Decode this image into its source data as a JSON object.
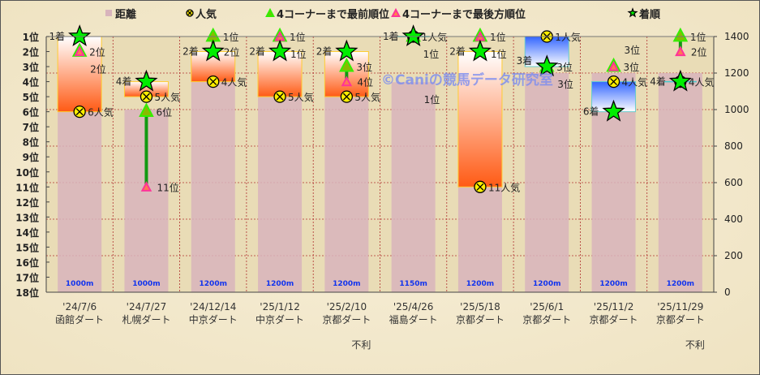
{
  "chart_data": {
    "type": "combo",
    "legend": {
      "position": "top",
      "items": [
        "距離",
        "人気",
        "4コーナーまで最前順位",
        "4コーナーまで最後方順位",
        "着順"
      ]
    },
    "left_axis": {
      "range": [
        1,
        18
      ],
      "reversed": true,
      "tick_labels": [
        "1位",
        "2位",
        "3位",
        "4位",
        "5位",
        "6位",
        "7位",
        "8位",
        "9位",
        "10位",
        "11位",
        "12位",
        "13位",
        "14位",
        "15位",
        "16位",
        "17位",
        "18位"
      ]
    },
    "right_axis": {
      "range": [
        0,
        1400
      ],
      "ticks": [
        0,
        200,
        400,
        600,
        800,
        1000,
        1200,
        1400
      ]
    },
    "grid": true,
    "watermark": "©Caniの競馬データ研究室",
    "races": [
      {
        "date": "'24/7/6",
        "course": "函館ダート",
        "distance": 1000,
        "distance_label": "1000m",
        "finish": 1,
        "popularity": 6,
        "front": 2,
        "rear": 2,
        "note": ""
      },
      {
        "date": "'24/7/27",
        "course": "札幌ダート",
        "distance": 1000,
        "distance_label": "1000m",
        "finish": 4,
        "popularity": 5,
        "front": 6,
        "rear": 11,
        "note": ""
      },
      {
        "date": "'24/12/14",
        "course": "中京ダート",
        "distance": 1200,
        "distance_label": "1200m",
        "finish": 2,
        "popularity": 4,
        "front": 1,
        "rear": 2,
        "note": ""
      },
      {
        "date": "'25/1/12",
        "course": "中京ダート",
        "distance": 1200,
        "distance_label": "1200m",
        "finish": 2,
        "popularity": 5,
        "front": 1,
        "rear": 1,
        "note": ""
      },
      {
        "date": "'25/2/10",
        "course": "京都ダート",
        "distance": 1200,
        "distance_label": "1200m",
        "finish": 2,
        "popularity": 5,
        "front": 3,
        "rear": 4,
        "note": "不利"
      },
      {
        "date": "'25/4/26",
        "course": "福島ダート",
        "distance": 1150,
        "distance_label": "1150m",
        "finish": 1,
        "popularity": 1,
        "front": 1,
        "rear": 1,
        "note": ""
      },
      {
        "date": "'25/5/18",
        "course": "京都ダート",
        "distance": 1200,
        "distance_label": "1200m",
        "finish": 2,
        "popularity": 11,
        "front": 1,
        "rear": 1,
        "note": ""
      },
      {
        "date": "'25/6/1",
        "course": "京都ダート",
        "distance": 1200,
        "distance_label": "1200m",
        "finish": 3,
        "popularity": 1,
        "front": 3,
        "rear": 3,
        "note": ""
      },
      {
        "date": "'25/11/2",
        "course": "京都ダート",
        "distance": 1200,
        "distance_label": "1200m",
        "finish": 6,
        "popularity": 4,
        "front": 3,
        "rear": 3,
        "note": ""
      },
      {
        "date": "'25/11/29",
        "course": "京都ダート",
        "distance": 1200,
        "distance_label": "1200m",
        "finish": 4,
        "popularity": 4,
        "front": 1,
        "rear": 2,
        "note": "不利"
      }
    ],
    "suffixes": {
      "finish": "着",
      "popularity": "人気",
      "position": "位"
    },
    "colors": {
      "distance_bar": "#d8b4bc",
      "front": "#33ee00",
      "rear": "#ff3399",
      "star": "#00ee00",
      "popularity": "#ffee00",
      "box_better": "#ff5500",
      "box_worse": "#3366ff",
      "grid": "#b03030"
    }
  }
}
